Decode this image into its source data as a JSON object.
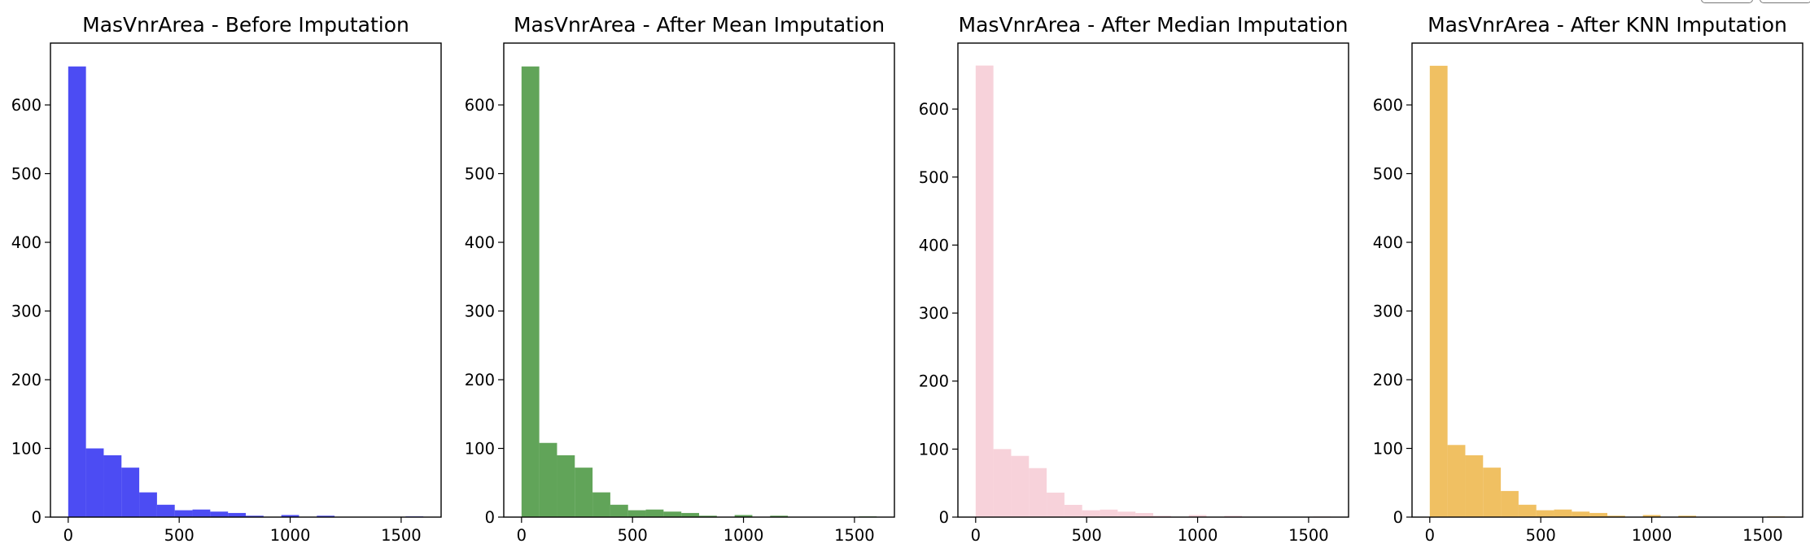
{
  "chart_data": [
    {
      "type": "bar",
      "title": "MasVnrArea - Before Imputation",
      "color": "#0000ee",
      "opacity": 0.7,
      "bin_edges": [
        0,
        80,
        160,
        240,
        320,
        400,
        480,
        560,
        640,
        720,
        800,
        880,
        960,
        1040,
        1120,
        1200,
        1280,
        1360,
        1440,
        1520,
        1600
      ],
      "values": [
        656,
        100,
        90,
        72,
        36,
        18,
        10,
        11,
        8,
        6,
        2,
        0,
        3,
        0,
        2,
        0,
        0,
        0,
        0,
        1
      ],
      "xlim": [
        -80,
        1680
      ],
      "ylim": [
        0,
        690
      ],
      "xticks": [
        0,
        500,
        1000,
        1500
      ],
      "yticks": [
        0,
        100,
        200,
        300,
        400,
        500,
        600
      ],
      "xlabel": "",
      "ylabel": ""
    },
    {
      "type": "bar",
      "title": "MasVnrArea - After Mean Imputation",
      "color": "#1e7d12",
      "opacity": 0.7,
      "bin_edges": [
        0,
        80,
        160,
        240,
        320,
        400,
        480,
        560,
        640,
        720,
        800,
        880,
        960,
        1040,
        1120,
        1200,
        1280,
        1360,
        1440,
        1520,
        1600
      ],
      "values": [
        656,
        108,
        90,
        72,
        36,
        18,
        10,
        11,
        8,
        6,
        2,
        0,
        3,
        0,
        2,
        0,
        0,
        0,
        0,
        1
      ],
      "xlim": [
        -80,
        1680
      ],
      "ylim": [
        0,
        690
      ],
      "xticks": [
        0,
        500,
        1000,
        1500
      ],
      "yticks": [
        0,
        100,
        200,
        300,
        400,
        500,
        600
      ],
      "xlabel": "",
      "ylabel": ""
    },
    {
      "type": "bar",
      "title": "MasVnrArea - After Median Imputation",
      "color": "#f4bfca",
      "opacity": 0.7,
      "bin_edges": [
        0,
        80,
        160,
        240,
        320,
        400,
        480,
        560,
        640,
        720,
        800,
        880,
        960,
        1040,
        1120,
        1200,
        1280,
        1360,
        1440,
        1520,
        1600
      ],
      "values": [
        664,
        100,
        90,
        72,
        36,
        18,
        10,
        11,
        8,
        6,
        2,
        0,
        3,
        0,
        2,
        0,
        0,
        0,
        0,
        1
      ],
      "xlim": [
        -80,
        1680
      ],
      "ylim": [
        0,
        697
      ],
      "xticks": [
        0,
        500,
        1000,
        1500
      ],
      "yticks": [
        0,
        100,
        200,
        300,
        400,
        500,
        600
      ],
      "xlabel": "",
      "ylabel": ""
    },
    {
      "type": "bar",
      "title": "MasVnrArea - After KNN Imputation",
      "color": "#eaa520",
      "opacity": 0.7,
      "bin_edges": [
        0,
        80,
        160,
        240,
        320,
        400,
        480,
        560,
        640,
        720,
        800,
        880,
        960,
        1040,
        1120,
        1200,
        1280,
        1360,
        1440,
        1520,
        1600
      ],
      "values": [
        657,
        105,
        90,
        72,
        38,
        18,
        10,
        11,
        8,
        6,
        2,
        0,
        3,
        0,
        2,
        0,
        0,
        0,
        0,
        1
      ],
      "xlim": [
        -80,
        1680
      ],
      "ylim": [
        0,
        690
      ],
      "xticks": [
        0,
        500,
        1000,
        1500
      ],
      "yticks": [
        0,
        100,
        200,
        300,
        400,
        500,
        600
      ],
      "xlabel": "",
      "ylabel": ""
    }
  ]
}
